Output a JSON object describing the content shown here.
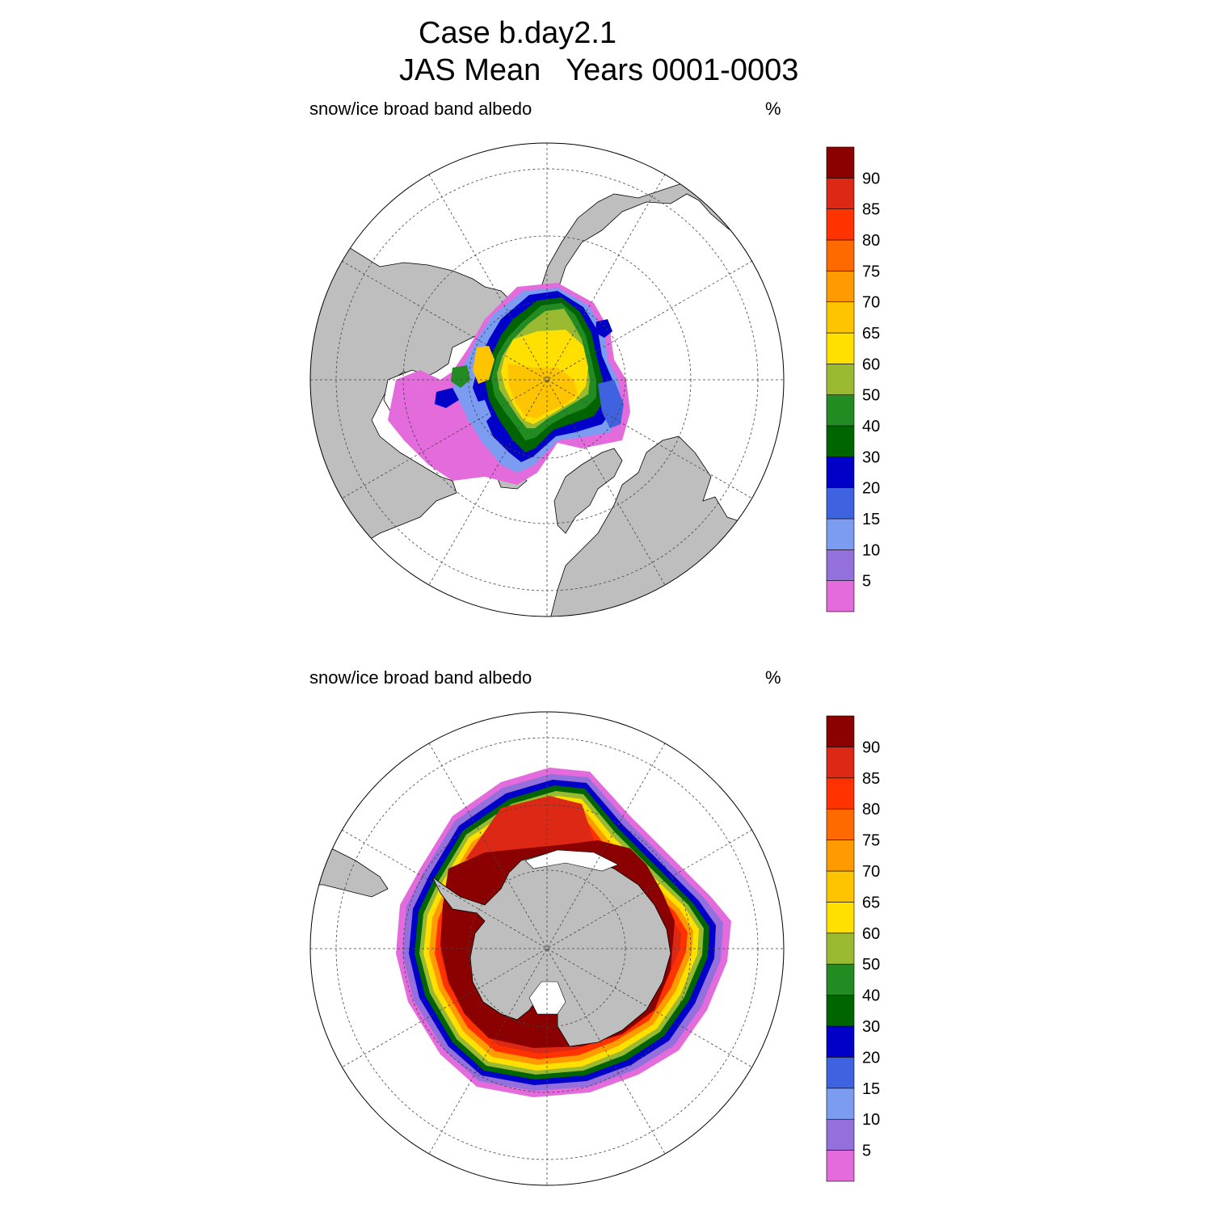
{
  "figure": {
    "title_line1": "Case b.day2.1",
    "title_line2": "JAS Mean   Years 0001-0003"
  },
  "colors": {
    "land": "#bebebe",
    "ocean": "#ffffff",
    "scale": [
      "#e36bdc",
      "#9370db",
      "#7b9cf0",
      "#3f63e0",
      "#0000c8",
      "#006400",
      "#228b22",
      "#9aba32",
      "#ffe000",
      "#ffc400",
      "#ff9b00",
      "#ff6a00",
      "#ff3200",
      "#dc2814",
      "#8b0000"
    ]
  },
  "chart_data": [
    {
      "type": "heatmap",
      "projection": "north-polar-stereographic",
      "variable": "snow/ice broad band albedo",
      "units": "%",
      "colorbar_levels": [
        "5",
        "10",
        "15",
        "20",
        "30",
        "40",
        "50",
        "60",
        "65",
        "70",
        "75",
        "80",
        "85",
        "90"
      ],
      "hemisphere": "north"
    },
    {
      "type": "heatmap",
      "projection": "south-polar-stereographic",
      "variable": "snow/ice broad band albedo",
      "units": "%",
      "colorbar_levels": [
        "5",
        "10",
        "15",
        "20",
        "30",
        "40",
        "50",
        "60",
        "65",
        "70",
        "75",
        "80",
        "85",
        "90"
      ],
      "hemisphere": "south"
    }
  ]
}
